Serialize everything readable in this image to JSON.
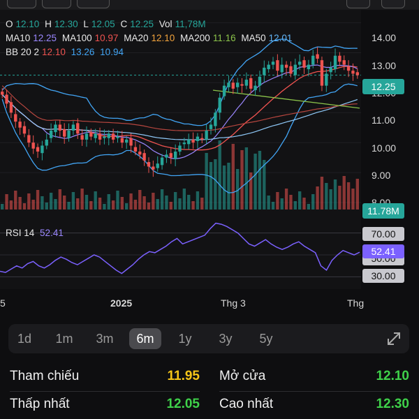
{
  "ohlc": {
    "o_label": "O",
    "o_value": "12.10",
    "h_label": "H",
    "h_value": "12.30",
    "l_label": "L",
    "l_value": "12.05",
    "c_label": "C",
    "c_value": "12.25",
    "vol_label": "Vol",
    "vol_value": "11,78M"
  },
  "ma_line": {
    "ma10_label": "MA10",
    "ma10_value": "12.25",
    "ma100_label": "MA100",
    "ma100_value": "10.97",
    "ma20_label": "MA20",
    "ma20_value": "12.10",
    "ma200_label": "MA200",
    "ma200_value": "11.16",
    "ma50_label": "MA50",
    "ma50_value": "12.01"
  },
  "bb": {
    "label": "BB 20 2",
    "mid": "12.10",
    "upper": "13.26",
    "lower": "10.94"
  },
  "price_axis": [
    "14.00",
    "13.00",
    "12.00",
    "11.00",
    "10.00",
    "9.00",
    "8.00"
  ],
  "last_price_tag": "12.25",
  "volume_tag": "11.78M",
  "rsi": {
    "label": "RSI 14",
    "value": "52.41",
    "upper": "70.00",
    "lower": "30.00",
    "mid_partial": "50.00"
  },
  "x_axis": {
    "left_partial": "5",
    "y2025": "2025",
    "thg3": "Thg 3",
    "right_partial": "Thg"
  },
  "tabs": [
    {
      "label": "1d"
    },
    {
      "label": "1m"
    },
    {
      "label": "3m"
    },
    {
      "label": "6m"
    },
    {
      "label": "1y"
    },
    {
      "label": "3y"
    },
    {
      "label": "5y"
    }
  ],
  "active_tab": "6m",
  "stats": {
    "ref_label": "Tham chiếu",
    "ref_value": "11.95",
    "open_label": "Mở cửa",
    "open_value": "12.10",
    "low_label": "Thấp nhất",
    "low_value": "12.05",
    "high_label": "Cao nhất",
    "high_value": "12.30"
  },
  "colors": {
    "up": "#26a69a",
    "down": "#ef5350",
    "ref_yellow": "#f5c518",
    "stat_green": "#3fd14a",
    "rsi_line": "#7b61ff",
    "last_tag": "#26a69a"
  },
  "chart_data": {
    "type": "line",
    "title": "",
    "closes": [
      11.6,
      11.3,
      11.0,
      10.7,
      10.5,
      10.3,
      10.0,
      9.8,
      9.7,
      9.9,
      10.1,
      10.4,
      10.6,
      10.4,
      10.2,
      10.4,
      10.6,
      10.3,
      10.1,
      10.3,
      10.2,
      10.3,
      10.1,
      10.2,
      10.3,
      10.1,
      10.2,
      10.0,
      10.1,
      9.9,
      9.7,
      9.6,
      9.4,
      9.2,
      9.1,
      9.3,
      9.5,
      9.6,
      9.5,
      9.7,
      9.9,
      10.0,
      10.1,
      10.0,
      10.2,
      10.1,
      10.4,
      10.6,
      11.0,
      11.5,
      11.9,
      12.0,
      11.8,
      12.0,
      11.9,
      12.1,
      11.8,
      11.9,
      12.2,
      12.5,
      12.6,
      12.7,
      12.4,
      12.6,
      12.5,
      12.3,
      12.6,
      12.7,
      12.5,
      12.6,
      12.9,
      12.8,
      11.9,
      12.3,
      12.5,
      12.9,
      12.7,
      12.6,
      12.4,
      12.3,
      12.25
    ],
    "ma_values": {
      "MA10": 12.25,
      "MA20": 12.1,
      "MA50": 12.01,
      "MA100": 10.97,
      "MA200": 11.16
    },
    "bollinger": {
      "period": 20,
      "std": 2,
      "mid": 12.1,
      "upper": 13.26,
      "lower": 10.94
    },
    "ylim": [
      8.0,
      14.2
    ],
    "rsi_values": [
      35,
      34,
      37,
      40,
      38,
      42,
      44,
      40,
      38,
      41,
      45,
      48,
      46,
      43,
      41,
      44,
      47,
      50,
      48,
      44,
      40,
      36,
      33,
      37,
      41,
      46,
      50,
      53,
      52,
      55,
      58,
      62,
      65,
      60,
      62,
      64,
      66,
      68,
      74,
      79,
      78,
      76,
      73,
      70,
      65,
      60,
      58,
      61,
      64,
      60,
      57,
      55,
      57,
      60,
      62,
      58,
      55,
      52,
      40,
      36,
      45,
      50,
      54,
      52,
      50,
      52.41
    ],
    "rsi_ylim": [
      20,
      80
    ]
  }
}
